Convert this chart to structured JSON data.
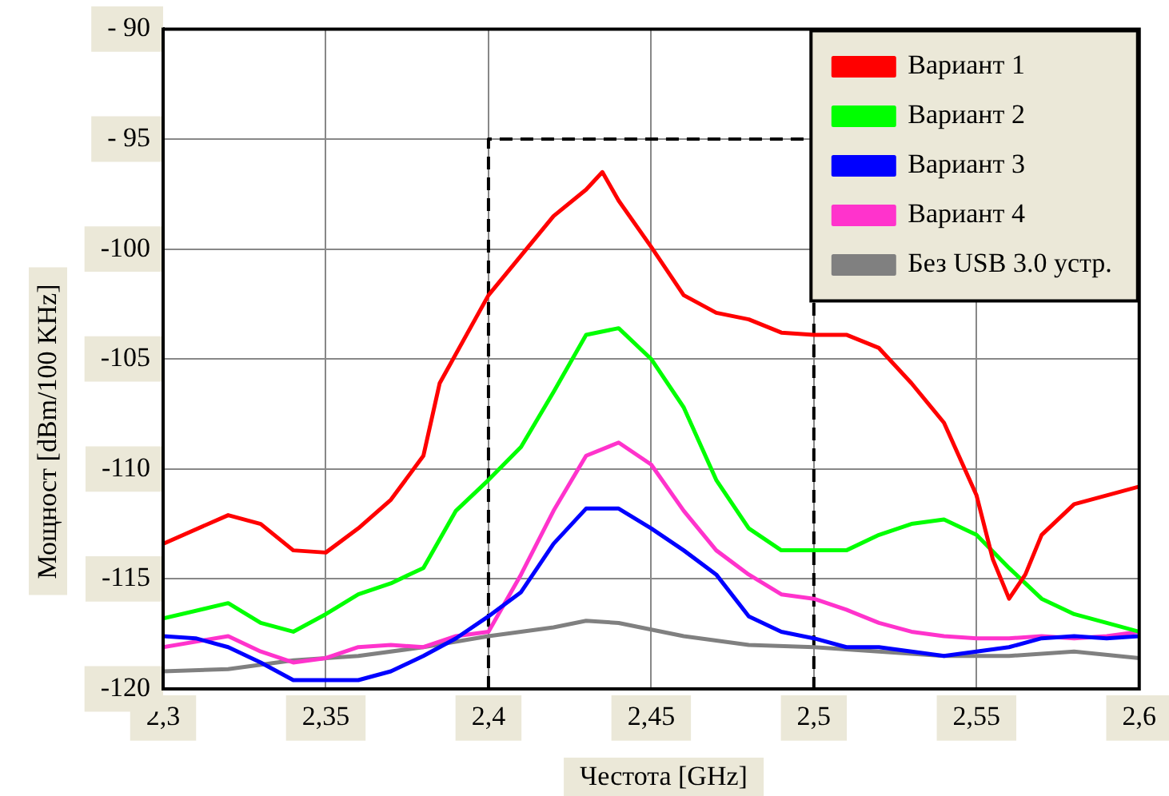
{
  "chart_data": {
    "type": "line",
    "xlabel": "Честота [GHz]",
    "ylabel": "Мощност [dBm/100 KHz]",
    "xlim": [
      2.3,
      2.6
    ],
    "ylim": [
      -120,
      -90
    ],
    "xticks": [
      {
        "value": 2.3,
        "label": "2,3"
      },
      {
        "value": 2.35,
        "label": "2,35"
      },
      {
        "value": 2.4,
        "label": "2,4"
      },
      {
        "value": 2.45,
        "label": "2,45"
      },
      {
        "value": 2.5,
        "label": "2,5"
      },
      {
        "value": 2.55,
        "label": "2,55"
      },
      {
        "value": 2.6,
        "label": "2,6"
      }
    ],
    "yticks": [
      -120,
      -115,
      -110,
      -105,
      -100,
      {
        "value": -95,
        "label": "- 95"
      },
      {
        "value": -90,
        "label": "- 90"
      }
    ],
    "grid": true,
    "legend": "top right",
    "marker": "none",
    "line_style": "solid",
    "series": [
      {
        "name": "Вариант 1",
        "color": "#ff0000",
        "x": [
          2.3,
          2.32,
          2.33,
          2.34,
          2.35,
          2.36,
          2.37,
          2.38,
          2.385,
          2.4,
          2.41,
          2.42,
          2.43,
          2.435,
          2.44,
          2.45,
          2.46,
          2.47,
          2.48,
          2.49,
          2.5,
          2.51,
          2.52,
          2.53,
          2.54,
          2.55,
          2.555,
          2.56,
          2.565,
          2.57,
          2.58,
          2.59,
          2.6
        ],
        "values": [
          -113.4,
          -112.1,
          -112.5,
          -113.7,
          -113.8,
          -112.7,
          -111.4,
          -109.4,
          -106.1,
          -102.1,
          -100.3,
          -98.5,
          -97.3,
          -96.5,
          -97.8,
          -99.9,
          -102.1,
          -102.9,
          -103.2,
          -103.8,
          -103.9,
          -103.9,
          -104.5,
          -106.1,
          -107.9,
          -111.2,
          -114.1,
          -115.9,
          -114.8,
          -113.0,
          -111.6,
          -111.2,
          -110.8
        ]
      },
      {
        "name": "Вариант 2",
        "color": "#00ff00",
        "x": [
          2.3,
          2.32,
          2.33,
          2.34,
          2.35,
          2.36,
          2.37,
          2.38,
          2.39,
          2.4,
          2.41,
          2.42,
          2.43,
          2.44,
          2.45,
          2.46,
          2.47,
          2.48,
          2.49,
          2.5,
          2.51,
          2.52,
          2.53,
          2.54,
          2.55,
          2.56,
          2.57,
          2.58,
          2.59,
          2.6
        ],
        "values": [
          -116.8,
          -116.1,
          -117.0,
          -117.4,
          -116.6,
          -115.7,
          -115.2,
          -114.5,
          -111.9,
          -110.5,
          -109.0,
          -106.5,
          -103.9,
          -103.6,
          -105.0,
          -107.2,
          -110.5,
          -112.7,
          -113.7,
          -113.7,
          -113.7,
          -113.0,
          -112.5,
          -112.3,
          -113.0,
          -114.5,
          -115.9,
          -116.6,
          -117.0,
          -117.4
        ]
      },
      {
        "name": "Вариант 3",
        "color": "#0000ff",
        "x": [
          2.3,
          2.31,
          2.32,
          2.33,
          2.34,
          2.35,
          2.36,
          2.37,
          2.38,
          2.39,
          2.4,
          2.41,
          2.42,
          2.43,
          2.44,
          2.45,
          2.46,
          2.47,
          2.48,
          2.49,
          2.5,
          2.51,
          2.52,
          2.53,
          2.54,
          2.55,
          2.56,
          2.57,
          2.58,
          2.59,
          2.6
        ],
        "values": [
          -117.6,
          -117.7,
          -118.1,
          -118.8,
          -119.6,
          -119.6,
          -119.6,
          -119.2,
          -118.5,
          -117.7,
          -116.7,
          -115.6,
          -113.4,
          -111.8,
          -111.8,
          -112.7,
          -113.7,
          -114.8,
          -116.7,
          -117.4,
          -117.7,
          -118.1,
          -118.1,
          -118.3,
          -118.5,
          -118.3,
          -118.1,
          -117.7,
          -117.6,
          -117.7,
          -117.6
        ]
      },
      {
        "name": "Вариант 4",
        "color": "#ff33cc",
        "x": [
          2.3,
          2.32,
          2.33,
          2.34,
          2.35,
          2.36,
          2.37,
          2.38,
          2.39,
          2.4,
          2.41,
          2.42,
          2.43,
          2.44,
          2.45,
          2.46,
          2.47,
          2.48,
          2.49,
          2.5,
          2.51,
          2.52,
          2.53,
          2.54,
          2.55,
          2.56,
          2.57,
          2.58,
          2.59,
          2.6
        ],
        "values": [
          -118.1,
          -117.6,
          -118.3,
          -118.8,
          -118.6,
          -118.1,
          -118.0,
          -118.1,
          -117.6,
          -117.4,
          -114.8,
          -111.9,
          -109.4,
          -108.8,
          -109.8,
          -111.9,
          -113.7,
          -114.8,
          -115.7,
          -115.9,
          -116.4,
          -117.0,
          -117.4,
          -117.6,
          -117.7,
          -117.7,
          -117.6,
          -117.7,
          -117.6,
          -117.4
        ]
      },
      {
        "name": "Без USB 3.0 устр.",
        "color": "#808080",
        "x": [
          2.3,
          2.32,
          2.34,
          2.36,
          2.38,
          2.4,
          2.42,
          2.43,
          2.44,
          2.46,
          2.48,
          2.5,
          2.52,
          2.54,
          2.56,
          2.58,
          2.6
        ],
        "values": [
          -119.2,
          -119.1,
          -118.7,
          -118.5,
          -118.1,
          -117.6,
          -117.2,
          -116.9,
          -117.0,
          -117.6,
          -118.0,
          -118.1,
          -118.3,
          -118.5,
          -118.5,
          -118.3,
          -118.6
        ]
      },
      {
        "type": "line",
        "color": "#000000",
        "line_style": "dashed",
        "x": [
          2.4,
          2.4,
          2.5,
          2.5
        ],
        "values": [
          -120,
          -95,
          -95,
          -120
        ]
      }
    ]
  }
}
